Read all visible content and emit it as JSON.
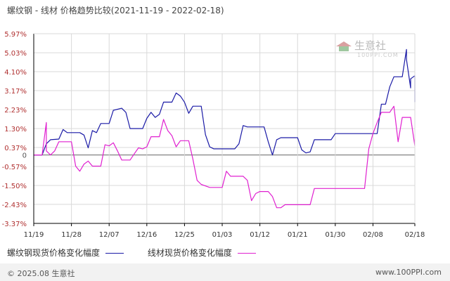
{
  "title": "螺纹钢 - 线材 价格趋势比较(2021-11-19 - 2022-02-18)",
  "watermark": {
    "name": "生意社",
    "sub": "100PPI.COM"
  },
  "footer": {
    "left": "© 2025.08 生意社",
    "right": "www.100PPI.com"
  },
  "colors": {
    "series1": "#1a1aa6",
    "series2": "#e020d0",
    "grid": "#d9d9d9",
    "axis": "#000000",
    "zero": "#666666"
  },
  "chart_data": {
    "type": "line",
    "x_ticks": [
      "11/19",
      "11/28",
      "12/07",
      "12/16",
      "12/25",
      "01/03",
      "01/12",
      "01/21",
      "01/30",
      "02/08",
      "02/18"
    ],
    "y_ticks": [
      "5.97%",
      "5.03%",
      "4.10%",
      "3.17%",
      "2.23%",
      "1.30%",
      "0.37%",
      "0",
      "-0.57%",
      "-1.50%",
      "-2.43%",
      "-3.37%"
    ],
    "y_tick_values": [
      5.97,
      5.03,
      4.1,
      3.17,
      2.23,
      1.3,
      0.37,
      0,
      -0.57,
      -1.5,
      -2.43,
      -3.37
    ],
    "ylim": [
      -3.37,
      5.97
    ],
    "x_start": "2021-11-19",
    "x_end": "2022-02-18",
    "series": [
      {
        "name": "螺纹钢现货价格变化幅度",
        "color": "#1a1aa6",
        "points": [
          [
            "2021-11-19",
            0
          ],
          [
            "2021-11-21",
            0
          ],
          [
            "2021-11-22",
            0.55
          ],
          [
            "2021-11-23",
            0.75
          ],
          [
            "2021-11-25",
            0.78
          ],
          [
            "2021-11-26",
            1.25
          ],
          [
            "2021-11-27",
            1.1
          ],
          [
            "2021-11-30",
            1.1
          ],
          [
            "2021-12-01",
            0.98
          ],
          [
            "2021-12-02",
            0.35
          ],
          [
            "2021-12-03",
            1.2
          ],
          [
            "2021-12-04",
            1.1
          ],
          [
            "2021-12-05",
            1.55
          ],
          [
            "2021-12-07",
            1.55
          ],
          [
            "2021-12-08",
            2.2
          ],
          [
            "2021-12-10",
            2.3
          ],
          [
            "2021-12-11",
            2.1
          ],
          [
            "2021-12-12",
            1.3
          ],
          [
            "2021-12-15",
            1.3
          ],
          [
            "2021-12-16",
            1.8
          ],
          [
            "2021-12-17",
            2.1
          ],
          [
            "2021-12-18",
            1.85
          ],
          [
            "2021-12-19",
            2.0
          ],
          [
            "2021-12-20",
            2.6
          ],
          [
            "2021-12-22",
            2.6
          ],
          [
            "2021-12-23",
            3.05
          ],
          [
            "2021-12-24",
            2.9
          ],
          [
            "2021-12-25",
            2.6
          ],
          [
            "2021-12-26",
            2.05
          ],
          [
            "2021-12-27",
            2.4
          ],
          [
            "2021-12-29",
            2.4
          ],
          [
            "2021-12-30",
            1.0
          ],
          [
            "2021-12-31",
            0.4
          ],
          [
            "2022-01-01",
            0.3
          ],
          [
            "2022-01-06",
            0.3
          ],
          [
            "2022-01-07",
            0.55
          ],
          [
            "2022-01-08",
            1.45
          ],
          [
            "2022-01-09",
            1.38
          ],
          [
            "2022-01-13",
            1.38
          ],
          [
            "2022-01-14",
            0.65
          ],
          [
            "2022-01-15",
            0
          ],
          [
            "2022-01-16",
            0.75
          ],
          [
            "2022-01-17",
            0.85
          ],
          [
            "2022-01-21",
            0.85
          ],
          [
            "2022-01-22",
            0.25
          ],
          [
            "2022-01-23",
            0.1
          ],
          [
            "2022-01-24",
            0.15
          ],
          [
            "2022-01-25",
            0.75
          ],
          [
            "2022-01-29",
            0.75
          ],
          [
            "2022-01-30",
            1.05
          ],
          [
            "2022-02-09",
            1.05
          ],
          [
            "2022-02-10",
            2.5
          ],
          [
            "2022-02-11",
            2.5
          ],
          [
            "2022-02-12",
            3.35
          ],
          [
            "2022-02-13",
            3.85
          ],
          [
            "2022-02-15",
            3.85
          ],
          [
            "2022-02-16",
            5.2
          ],
          [
            "2022-02-16",
            4.7
          ],
          [
            "2022-02-17",
            3.3
          ],
          [
            "2022-02-17",
            3.75
          ],
          [
            "2022-02-18",
            3.9
          ],
          [
            "2022-02-18",
            2.6
          ]
        ]
      },
      {
        "name": "线材现货价格变化幅度",
        "color": "#e020d0",
        "points": [
          [
            "2021-11-19",
            0
          ],
          [
            "2021-11-21",
            0
          ],
          [
            "2021-11-22",
            1.6
          ],
          [
            "2021-11-22",
            0.2
          ],
          [
            "2021-11-23",
            0
          ],
          [
            "2021-11-24",
            0.2
          ],
          [
            "2021-11-25",
            0.65
          ],
          [
            "2021-11-28",
            0.65
          ],
          [
            "2021-11-29",
            -0.55
          ],
          [
            "2021-11-30",
            -0.8
          ],
          [
            "2021-12-01",
            -0.45
          ],
          [
            "2021-12-02",
            -0.3
          ],
          [
            "2021-12-03",
            -0.55
          ],
          [
            "2021-12-05",
            -0.55
          ],
          [
            "2021-12-06",
            0.5
          ],
          [
            "2021-12-07",
            0.45
          ],
          [
            "2021-12-08",
            0.6
          ],
          [
            "2021-12-09",
            0.2
          ],
          [
            "2021-12-10",
            -0.25
          ],
          [
            "2021-12-12",
            -0.25
          ],
          [
            "2021-12-13",
            0.05
          ],
          [
            "2021-12-14",
            0.35
          ],
          [
            "2021-12-15",
            0.3
          ],
          [
            "2021-12-16",
            0.4
          ],
          [
            "2021-12-17",
            0.9
          ],
          [
            "2021-12-19",
            0.9
          ],
          [
            "2021-12-20",
            1.75
          ],
          [
            "2021-12-21",
            1.2
          ],
          [
            "2021-12-22",
            0.95
          ],
          [
            "2021-12-23",
            0.4
          ],
          [
            "2021-12-24",
            0.7
          ],
          [
            "2021-12-26",
            0.7
          ],
          [
            "2021-12-27",
            -0.2
          ],
          [
            "2021-12-28",
            -1.25
          ],
          [
            "2021-12-29",
            -1.45
          ],
          [
            "2021-12-31",
            -1.6
          ],
          [
            "2022-01-03",
            -1.6
          ],
          [
            "2022-01-04",
            -0.8
          ],
          [
            "2022-01-05",
            -1.05
          ],
          [
            "2022-01-08",
            -1.05
          ],
          [
            "2022-01-09",
            -1.25
          ],
          [
            "2022-01-10",
            -2.25
          ],
          [
            "2022-01-11",
            -1.9
          ],
          [
            "2022-01-12",
            -1.8
          ],
          [
            "2022-01-14",
            -1.8
          ],
          [
            "2022-01-15",
            -2.05
          ],
          [
            "2022-01-16",
            -2.6
          ],
          [
            "2022-01-17",
            -2.6
          ],
          [
            "2022-01-18",
            -2.45
          ],
          [
            "2022-01-24",
            -2.45
          ],
          [
            "2022-01-25",
            -1.65
          ],
          [
            "2022-02-06",
            -1.65
          ],
          [
            "2022-02-07",
            0.3
          ],
          [
            "2022-02-08",
            1.05
          ],
          [
            "2022-02-09",
            1.6
          ],
          [
            "2022-02-10",
            2.1
          ],
          [
            "2022-02-12",
            2.1
          ],
          [
            "2022-02-13",
            2.4
          ],
          [
            "2022-02-14",
            0.65
          ],
          [
            "2022-02-15",
            1.85
          ],
          [
            "2022-02-17",
            1.85
          ],
          [
            "2022-02-18",
            0.45
          ]
        ]
      }
    ],
    "grid": true,
    "legend_position": "bottom-left"
  }
}
